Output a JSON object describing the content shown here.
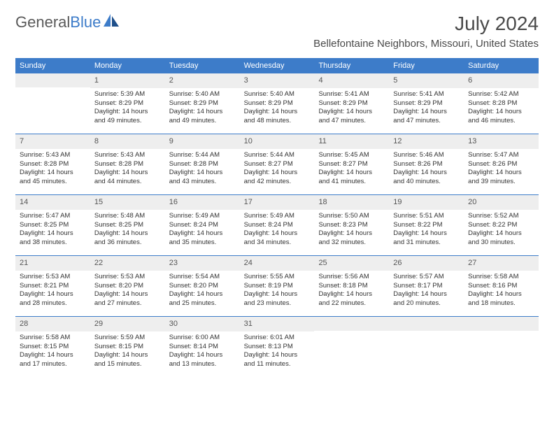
{
  "logo": {
    "part1": "General",
    "part2": "Blue"
  },
  "title": "July 2024",
  "location": "Bellefontaine Neighbors, Missouri, United States",
  "colors": {
    "primary": "#3d7cc9",
    "header_text": "#ffffff",
    "day_num_bg": "#eeeeee",
    "text": "#333333",
    "bg": "#ffffff"
  },
  "day_headers": [
    "Sunday",
    "Monday",
    "Tuesday",
    "Wednesday",
    "Thursday",
    "Friday",
    "Saturday"
  ],
  "weeks": [
    [
      {
        "num": "",
        "sunrise": "",
        "sunset": "",
        "daylight": ""
      },
      {
        "num": "1",
        "sunrise": "Sunrise: 5:39 AM",
        "sunset": "Sunset: 8:29 PM",
        "daylight": "Daylight: 14 hours and 49 minutes."
      },
      {
        "num": "2",
        "sunrise": "Sunrise: 5:40 AM",
        "sunset": "Sunset: 8:29 PM",
        "daylight": "Daylight: 14 hours and 49 minutes."
      },
      {
        "num": "3",
        "sunrise": "Sunrise: 5:40 AM",
        "sunset": "Sunset: 8:29 PM",
        "daylight": "Daylight: 14 hours and 48 minutes."
      },
      {
        "num": "4",
        "sunrise": "Sunrise: 5:41 AM",
        "sunset": "Sunset: 8:29 PM",
        "daylight": "Daylight: 14 hours and 47 minutes."
      },
      {
        "num": "5",
        "sunrise": "Sunrise: 5:41 AM",
        "sunset": "Sunset: 8:29 PM",
        "daylight": "Daylight: 14 hours and 47 minutes."
      },
      {
        "num": "6",
        "sunrise": "Sunrise: 5:42 AM",
        "sunset": "Sunset: 8:28 PM",
        "daylight": "Daylight: 14 hours and 46 minutes."
      }
    ],
    [
      {
        "num": "7",
        "sunrise": "Sunrise: 5:43 AM",
        "sunset": "Sunset: 8:28 PM",
        "daylight": "Daylight: 14 hours and 45 minutes."
      },
      {
        "num": "8",
        "sunrise": "Sunrise: 5:43 AM",
        "sunset": "Sunset: 8:28 PM",
        "daylight": "Daylight: 14 hours and 44 minutes."
      },
      {
        "num": "9",
        "sunrise": "Sunrise: 5:44 AM",
        "sunset": "Sunset: 8:28 PM",
        "daylight": "Daylight: 14 hours and 43 minutes."
      },
      {
        "num": "10",
        "sunrise": "Sunrise: 5:44 AM",
        "sunset": "Sunset: 8:27 PM",
        "daylight": "Daylight: 14 hours and 42 minutes."
      },
      {
        "num": "11",
        "sunrise": "Sunrise: 5:45 AM",
        "sunset": "Sunset: 8:27 PM",
        "daylight": "Daylight: 14 hours and 41 minutes."
      },
      {
        "num": "12",
        "sunrise": "Sunrise: 5:46 AM",
        "sunset": "Sunset: 8:26 PM",
        "daylight": "Daylight: 14 hours and 40 minutes."
      },
      {
        "num": "13",
        "sunrise": "Sunrise: 5:47 AM",
        "sunset": "Sunset: 8:26 PM",
        "daylight": "Daylight: 14 hours and 39 minutes."
      }
    ],
    [
      {
        "num": "14",
        "sunrise": "Sunrise: 5:47 AM",
        "sunset": "Sunset: 8:25 PM",
        "daylight": "Daylight: 14 hours and 38 minutes."
      },
      {
        "num": "15",
        "sunrise": "Sunrise: 5:48 AM",
        "sunset": "Sunset: 8:25 PM",
        "daylight": "Daylight: 14 hours and 36 minutes."
      },
      {
        "num": "16",
        "sunrise": "Sunrise: 5:49 AM",
        "sunset": "Sunset: 8:24 PM",
        "daylight": "Daylight: 14 hours and 35 minutes."
      },
      {
        "num": "17",
        "sunrise": "Sunrise: 5:49 AM",
        "sunset": "Sunset: 8:24 PM",
        "daylight": "Daylight: 14 hours and 34 minutes."
      },
      {
        "num": "18",
        "sunrise": "Sunrise: 5:50 AM",
        "sunset": "Sunset: 8:23 PM",
        "daylight": "Daylight: 14 hours and 32 minutes."
      },
      {
        "num": "19",
        "sunrise": "Sunrise: 5:51 AM",
        "sunset": "Sunset: 8:22 PM",
        "daylight": "Daylight: 14 hours and 31 minutes."
      },
      {
        "num": "20",
        "sunrise": "Sunrise: 5:52 AM",
        "sunset": "Sunset: 8:22 PM",
        "daylight": "Daylight: 14 hours and 30 minutes."
      }
    ],
    [
      {
        "num": "21",
        "sunrise": "Sunrise: 5:53 AM",
        "sunset": "Sunset: 8:21 PM",
        "daylight": "Daylight: 14 hours and 28 minutes."
      },
      {
        "num": "22",
        "sunrise": "Sunrise: 5:53 AM",
        "sunset": "Sunset: 8:20 PM",
        "daylight": "Daylight: 14 hours and 27 minutes."
      },
      {
        "num": "23",
        "sunrise": "Sunrise: 5:54 AM",
        "sunset": "Sunset: 8:20 PM",
        "daylight": "Daylight: 14 hours and 25 minutes."
      },
      {
        "num": "24",
        "sunrise": "Sunrise: 5:55 AM",
        "sunset": "Sunset: 8:19 PM",
        "daylight": "Daylight: 14 hours and 23 minutes."
      },
      {
        "num": "25",
        "sunrise": "Sunrise: 5:56 AM",
        "sunset": "Sunset: 8:18 PM",
        "daylight": "Daylight: 14 hours and 22 minutes."
      },
      {
        "num": "26",
        "sunrise": "Sunrise: 5:57 AM",
        "sunset": "Sunset: 8:17 PM",
        "daylight": "Daylight: 14 hours and 20 minutes."
      },
      {
        "num": "27",
        "sunrise": "Sunrise: 5:58 AM",
        "sunset": "Sunset: 8:16 PM",
        "daylight": "Daylight: 14 hours and 18 minutes."
      }
    ],
    [
      {
        "num": "28",
        "sunrise": "Sunrise: 5:58 AM",
        "sunset": "Sunset: 8:15 PM",
        "daylight": "Daylight: 14 hours and 17 minutes."
      },
      {
        "num": "29",
        "sunrise": "Sunrise: 5:59 AM",
        "sunset": "Sunset: 8:15 PM",
        "daylight": "Daylight: 14 hours and 15 minutes."
      },
      {
        "num": "30",
        "sunrise": "Sunrise: 6:00 AM",
        "sunset": "Sunset: 8:14 PM",
        "daylight": "Daylight: 14 hours and 13 minutes."
      },
      {
        "num": "31",
        "sunrise": "Sunrise: 6:01 AM",
        "sunset": "Sunset: 8:13 PM",
        "daylight": "Daylight: 14 hours and 11 minutes."
      },
      {
        "num": "",
        "sunrise": "",
        "sunset": "",
        "daylight": ""
      },
      {
        "num": "",
        "sunrise": "",
        "sunset": "",
        "daylight": ""
      },
      {
        "num": "",
        "sunrise": "",
        "sunset": "",
        "daylight": ""
      }
    ]
  ]
}
